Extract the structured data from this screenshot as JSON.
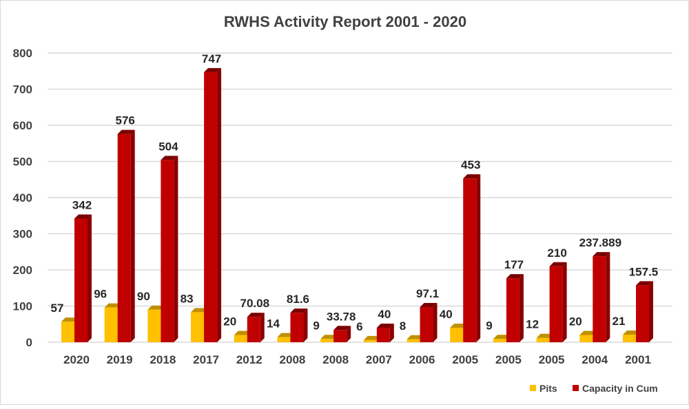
{
  "chart_data": {
    "type": "bar",
    "title": "RWHS Activity Report 2001 - 2020",
    "xlabel": "",
    "ylabel": "",
    "ylim": [
      0,
      800
    ],
    "yticks": [
      0,
      100,
      200,
      300,
      400,
      500,
      600,
      700,
      800
    ],
    "grid": true,
    "legend_position": "bottom-right",
    "categories": [
      "2020",
      "2019",
      "2018",
      "2017",
      "2012",
      "2008",
      "2008",
      "2007",
      "2006",
      "2005",
      "2005",
      "2005",
      "2004",
      "2001"
    ],
    "series": [
      {
        "name": "Pits",
        "color": "#ffc000",
        "values": [
          57,
          96,
          90,
          83,
          20,
          14,
          9,
          6,
          8,
          40,
          9,
          12,
          20,
          21
        ],
        "labels": [
          "57",
          "96",
          "90",
          "83",
          "20",
          "14",
          "9",
          "6",
          "8",
          "40",
          "9",
          "12",
          "20",
          "21"
        ]
      },
      {
        "name": "Capacity in Cum",
        "color": "#c00000",
        "values": [
          342,
          576,
          504,
          747,
          70.08,
          81.6,
          33.78,
          40,
          97.1,
          453,
          177,
          210,
          237.889,
          157.5
        ],
        "labels": [
          "342",
          "576",
          "504",
          "747",
          "70.08",
          "81.6",
          "33.78",
          "40",
          "97.1",
          "453",
          "177",
          "210",
          "237.889",
          "157.5"
        ]
      }
    ]
  }
}
